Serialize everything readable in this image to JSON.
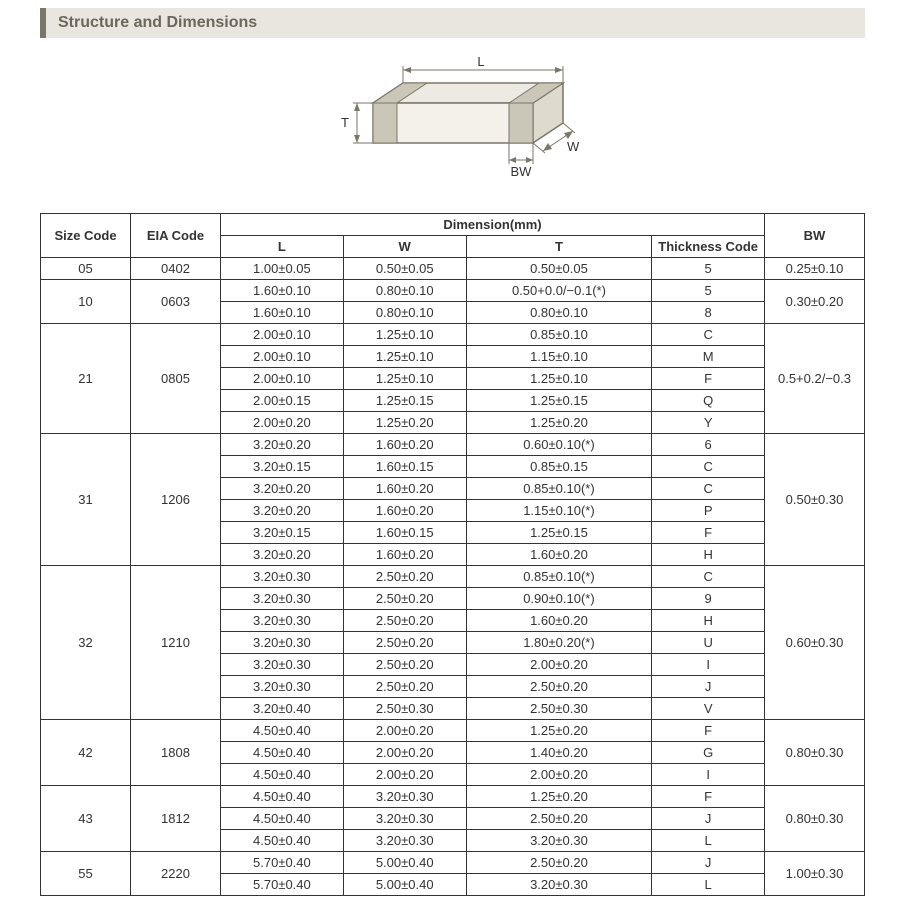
{
  "header": {
    "title": "Structure and Dimensions"
  },
  "diagram": {
    "labels": {
      "L": "L",
      "W": "W",
      "T": "T",
      "BW": "BW"
    },
    "colors": {
      "stroke": "#7a766a",
      "fill_top": "#eceae3",
      "fill_side": "#dedacd",
      "fill_front": "#f3f1ea",
      "band": "#cbc7b8",
      "label": "#333333",
      "arrow": "#7a766a"
    },
    "font_size": 13
  },
  "table": {
    "caption_dim": "Dimension",
    "caption_unit": "(mm)",
    "columns": {
      "size": "Size Code",
      "eia": "EIA Code",
      "L": "L",
      "W": "W",
      "T": "T",
      "thk": "Thickness  Code",
      "bw": "BW"
    },
    "groups": [
      {
        "size": "05",
        "eia": "0402",
        "bw": "0.25±0.10",
        "rows": [
          {
            "L": "1.00±0.05",
            "W": "0.50±0.05",
            "T": "0.50±0.05",
            "thk": "5"
          }
        ]
      },
      {
        "size": "10",
        "eia": "0603",
        "bw": "0.30±0.20",
        "rows": [
          {
            "L": "1.60±0.10",
            "W": "0.80±0.10",
            "T": "0.50+0.0/−0.1(*)",
            "thk": "5"
          },
          {
            "L": "1.60±0.10",
            "W": "0.80±0.10",
            "T": "0.80±0.10",
            "thk": "8"
          }
        ]
      },
      {
        "size": "21",
        "eia": "0805",
        "bw": "0.5+0.2/−0.3",
        "rows": [
          {
            "L": "2.00±0.10",
            "W": "1.25±0.10",
            "T": "0.85±0.10",
            "thk": "C"
          },
          {
            "L": "2.00±0.10",
            "W": "1.25±0.10",
            "T": "1.15±0.10",
            "thk": "M"
          },
          {
            "L": "2.00±0.10",
            "W": "1.25±0.10",
            "T": "1.25±0.10",
            "thk": "F"
          },
          {
            "L": "2.00±0.15",
            "W": "1.25±0.15",
            "T": "1.25±0.15",
            "thk": "Q"
          },
          {
            "L": "2.00±0.20",
            "W": "1.25±0.20",
            "T": "1.25±0.20",
            "thk": "Y"
          }
        ]
      },
      {
        "size": "31",
        "eia": "1206",
        "bw": "0.50±0.30",
        "rows": [
          {
            "L": "3.20±0.20",
            "W": "1.60±0.20",
            "T": "0.60±0.10(*)",
            "thk": "6"
          },
          {
            "L": "3.20±0.15",
            "W": "1.60±0.15",
            "T": "0.85±0.15",
            "thk": "C"
          },
          {
            "L": "3.20±0.20",
            "W": "1.60±0.20",
            "T": "0.85±0.10(*)",
            "thk": "C"
          },
          {
            "L": "3.20±0.20",
            "W": "1.60±0.20",
            "T": "1.15±0.10(*)",
            "thk": "P"
          },
          {
            "L": "3.20±0.15",
            "W": "1.60±0.15",
            "T": "1.25±0.15",
            "thk": "F"
          },
          {
            "L": "3.20±0.20",
            "W": "1.60±0.20",
            "T": "1.60±0.20",
            "thk": "H"
          }
        ]
      },
      {
        "size": "32",
        "eia": "1210",
        "bw": "0.60±0.30",
        "rows": [
          {
            "L": "3.20±0.30",
            "W": "2.50±0.20",
            "T": "0.85±0.10(*)",
            "thk": "C"
          },
          {
            "L": "3.20±0.30",
            "W": "2.50±0.20",
            "T": "0.90±0.10(*)",
            "thk": "9"
          },
          {
            "L": "3.20±0.30",
            "W": "2.50±0.20",
            "T": "1.60±0.20",
            "thk": "H"
          },
          {
            "L": "3.20±0.30",
            "W": "2.50±0.20",
            "T": "1.80±0.20(*)",
            "thk": "U"
          },
          {
            "L": "3.20±0.30",
            "W": "2.50±0.20",
            "T": "2.00±0.20",
            "thk": "I"
          },
          {
            "L": "3.20±0.30",
            "W": "2.50±0.20",
            "T": "2.50±0.20",
            "thk": "J"
          },
          {
            "L": "3.20±0.40",
            "W": "2.50±0.30",
            "T": "2.50±0.30",
            "thk": "V"
          }
        ]
      },
      {
        "size": "42",
        "eia": "1808",
        "bw": "0.80±0.30",
        "rows": [
          {
            "L": "4.50±0.40",
            "W": "2.00±0.20",
            "T": "1.25±0.20",
            "thk": "F"
          },
          {
            "L": "4.50±0.40",
            "W": "2.00±0.20",
            "T": "1.40±0.20",
            "thk": "G"
          },
          {
            "L": "4.50±0.40",
            "W": "2.00±0.20",
            "T": "2.00±0.20",
            "thk": "I"
          }
        ]
      },
      {
        "size": "43",
        "eia": "1812",
        "bw": "0.80±0.30",
        "rows": [
          {
            "L": "4.50±0.40",
            "W": "3.20±0.30",
            "T": "1.25±0.20",
            "thk": "F"
          },
          {
            "L": "4.50±0.40",
            "W": "3.20±0.30",
            "T": "2.50±0.20",
            "thk": "J"
          },
          {
            "L": "4.50±0.40",
            "W": "3.20±0.30",
            "T": "3.20±0.30",
            "thk": "L"
          }
        ]
      },
      {
        "size": "55",
        "eia": "2220",
        "bw": "1.00±0.30",
        "rows": [
          {
            "L": "5.70±0.40",
            "W": "5.00±0.40",
            "T": "2.50±0.20",
            "thk": "J"
          },
          {
            "L": "5.70±0.40",
            "W": "5.00±0.40",
            "T": "3.20±0.30",
            "thk": "L"
          }
        ]
      }
    ]
  },
  "style": {
    "header_bg": "#e8e6de",
    "header_accent": "#7a7668",
    "header_text": "#6b675a",
    "table_border": "#333333",
    "body_bg": "#ffffff",
    "font_family": "Arial",
    "header_font_size": 16,
    "table_font_size": 13
  }
}
